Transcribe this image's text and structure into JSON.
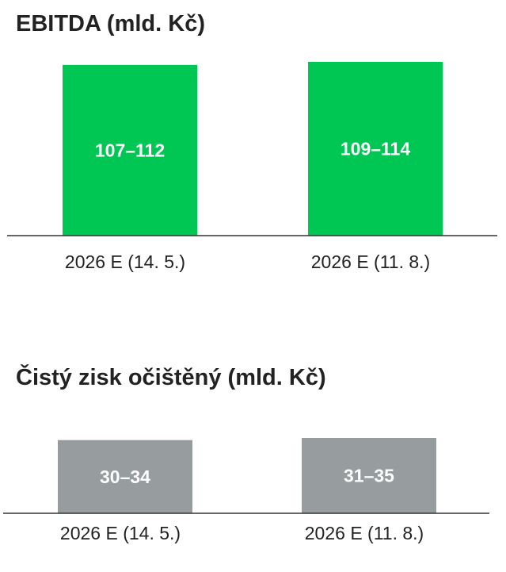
{
  "chart_data": [
    {
      "type": "bar",
      "title": "EBITDA (mld. Kč)",
      "categories": [
        "2026 E (14. 5.)",
        "2026 E (11. 8.)"
      ],
      "values": [
        {
          "low": 107,
          "high": 112,
          "label": "107–112"
        },
        {
          "low": 109,
          "high": 114,
          "label": "109–114"
        }
      ],
      "colors": {
        "bar": "#00c653",
        "axis": "#333333",
        "bar_text": "#ffffff"
      }
    },
    {
      "type": "bar",
      "title": "Čistý zisk očištěný (mld. Kč)",
      "categories": [
        "2026 E (14. 5.)",
        "2026 E (11. 8.)"
      ],
      "values": [
        {
          "low": 30,
          "high": 34,
          "label": "30–34"
        },
        {
          "low": 31,
          "high": 35,
          "label": "31–35"
        }
      ],
      "colors": {
        "bar": "#979d9f",
        "axis": "#333333",
        "bar_text": "#ffffff"
      }
    }
  ]
}
